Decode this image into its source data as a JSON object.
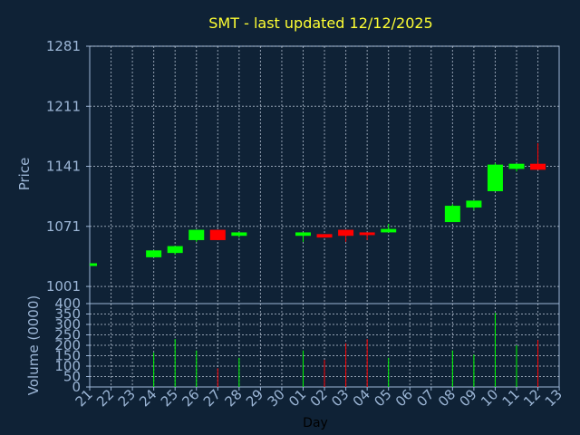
{
  "chart_data": {
    "type": "candlestick",
    "title": "SMT - last updated 12/12/2025",
    "x_label": "Day",
    "price_axis": {
      "label": "Price",
      "ylim": [
        981,
        1281
      ],
      "ticks": [
        "1281",
        "1211",
        "1141",
        "1071",
        "1001"
      ],
      "tick_values": [
        1281,
        1211,
        1141,
        1071,
        1001
      ]
    },
    "volume_axis": {
      "label": "Volume (0000)",
      "ylim": [
        0,
        400
      ],
      "ticks": [
        "400",
        "350",
        "300",
        "250",
        "200",
        "150",
        "100",
        "50",
        "0"
      ],
      "tick_values": [
        400,
        350,
        300,
        250,
        200,
        150,
        100,
        50,
        0
      ]
    },
    "days": [
      "21",
      "22",
      "23",
      "24",
      "25",
      "26",
      "27",
      "28",
      "29",
      "30",
      "01",
      "02",
      "03",
      "04",
      "05",
      "06",
      "07",
      "08",
      "09",
      "10",
      "11",
      "12",
      "13"
    ],
    "candles": [
      {
        "day": "21",
        "open": 1028,
        "close": 1028,
        "high": 1028,
        "low": 1028,
        "volume": 0
      },
      {
        "day": "24",
        "open": 1035,
        "close": 1043,
        "high": 1043,
        "low": 1035,
        "volume": 165
      },
      {
        "day": "25",
        "open": 1040,
        "close": 1048,
        "high": 1048,
        "low": 1038,
        "volume": 230
      },
      {
        "day": "26",
        "open": 1055,
        "close": 1067,
        "high": 1067,
        "low": 1053,
        "volume": 175
      },
      {
        "day": "27",
        "open": 1067,
        "close": 1055,
        "high": 1067,
        "low": 1055,
        "volume": 90
      },
      {
        "day": "28",
        "open": 1060,
        "close": 1064,
        "high": 1064,
        "low": 1058,
        "volume": 140
      },
      {
        "day": "01",
        "open": 1060,
        "close": 1064,
        "high": 1064,
        "low": 1053,
        "volume": 175
      },
      {
        "day": "02",
        "open": 1062,
        "close": 1058,
        "high": 1062,
        "low": 1058,
        "volume": 130
      },
      {
        "day": "03",
        "open": 1067,
        "close": 1060,
        "high": 1067,
        "low": 1053,
        "volume": 210
      },
      {
        "day": "04",
        "open": 1064,
        "close": 1062,
        "high": 1064,
        "low": 1055,
        "volume": 230
      },
      {
        "day": "05",
        "open": 1064,
        "close": 1068,
        "high": 1074,
        "low": 1064,
        "volume": 140
      },
      {
        "day": "08",
        "open": 1076,
        "close": 1095,
        "high": 1097,
        "low": 1076,
        "volume": 175
      },
      {
        "day": "09",
        "open": 1093,
        "close": 1101,
        "high": 1101,
        "low": 1090,
        "volume": 155
      },
      {
        "day": "10",
        "open": 1112,
        "close": 1143,
        "high": 1145,
        "low": 1112,
        "volume": 355
      },
      {
        "day": "11",
        "open": 1138,
        "close": 1144,
        "high": 1144,
        "low": 1135,
        "volume": 200
      },
      {
        "day": "12",
        "open": 1144,
        "close": 1137,
        "high": 1168,
        "low": 1137,
        "volume": 225
      }
    ],
    "colors": {
      "background": "#0f2236",
      "axes": "#9cb6d6",
      "grid": "#c8d4e4",
      "up": "#00ff00",
      "down": "#ff0000",
      "title": "#ffff33",
      "text": "#9cb6d6"
    },
    "grid": true
  }
}
